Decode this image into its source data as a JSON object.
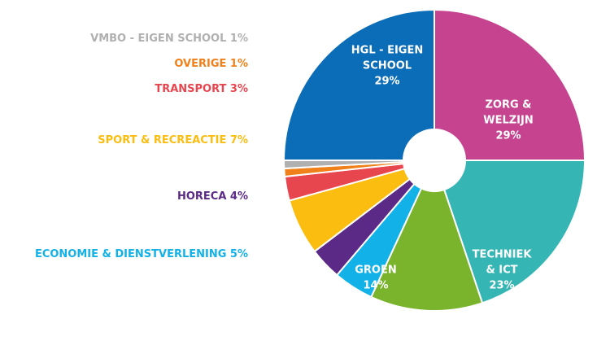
{
  "chart_data": {
    "type": "donut",
    "categories": [
      [
        "ZORG &",
        "WELZIJN"
      ],
      [
        "TECHNIEK",
        "& ICT"
      ],
      [
        "GROEN"
      ],
      [
        "ECONOMIE & DIENSTVERLENING"
      ],
      [
        "HORECA"
      ],
      [
        "SPORT & RECREACTIE"
      ],
      [
        "TRANSPORT"
      ],
      [
        "OVERIGE"
      ],
      [
        "VMBO - EIGEN SCHOOL"
      ],
      [
        "HGL - EIGEN",
        "SCHOOL"
      ]
    ],
    "values": [
      29,
      23,
      14,
      5,
      4,
      7,
      3,
      1,
      1,
      29
    ],
    "value_labels": [
      "29%",
      "23%",
      "14%",
      "5%",
      "4%",
      "7%",
      "3%",
      "1%",
      "1%",
      "29%"
    ],
    "colors": [
      "#c6448f",
      "#35b6b4",
      "#7ab42c",
      "#12b2e8",
      "#5b2a86",
      "#fbbd10",
      "#e8464f",
      "#f0801a",
      "#b0b0b0",
      "#0b6db7"
    ]
  }
}
